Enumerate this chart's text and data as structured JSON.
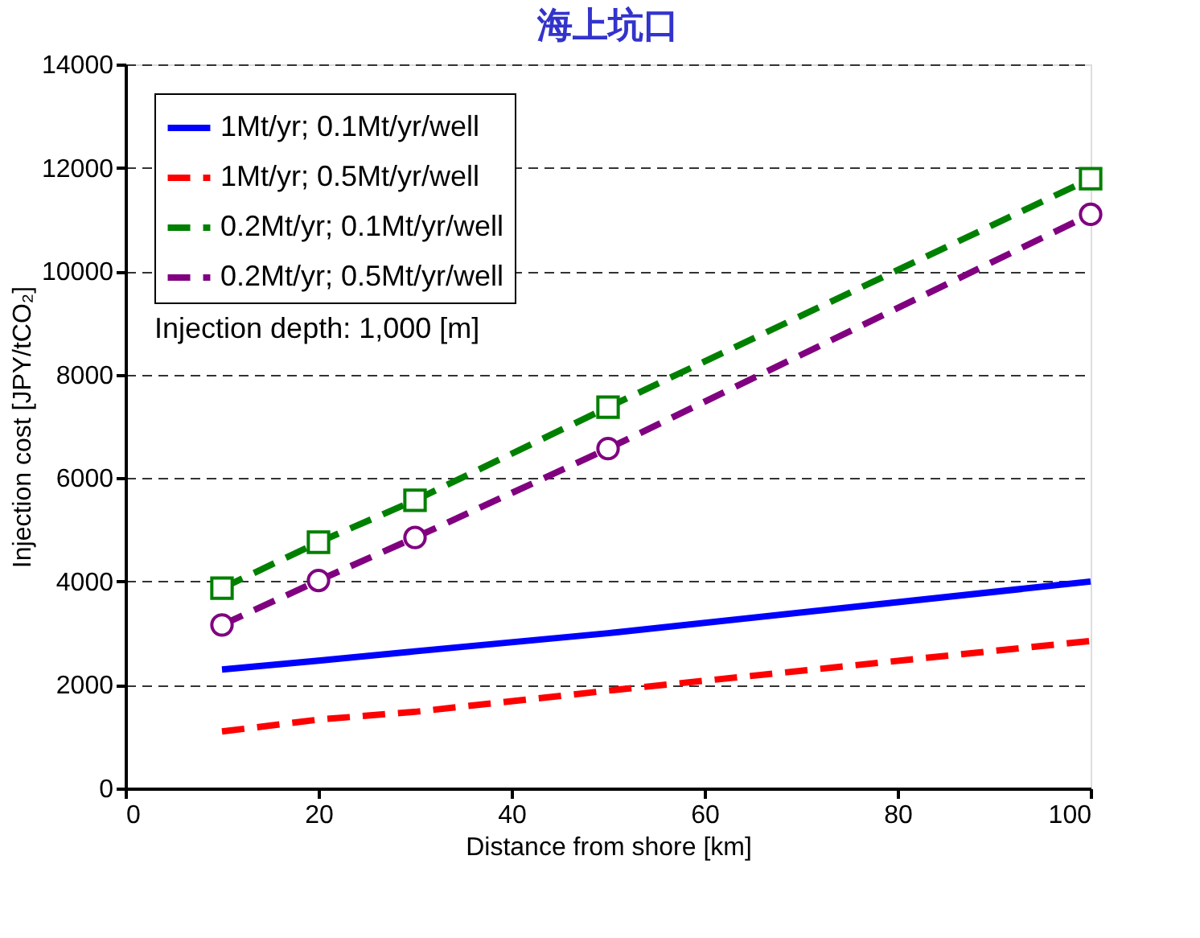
{
  "chart_data": {
    "type": "line",
    "title": "海上坑口",
    "xlabel": "Distance from shore [km]",
    "ylabel": "Injection cost [JPY/tCO₂]",
    "x": [
      10,
      20,
      30,
      50,
      100
    ],
    "series": [
      {
        "name": "1Mt/yr; 0.1Mt/yr/well",
        "color": "#0000ff",
        "values": [
          2300,
          2470,
          2650,
          3000,
          4000
        ],
        "marker": "none",
        "line_style": "solid"
      },
      {
        "name": "1Mt/yr; 0.5Mt/yr/well",
        "color": "#ff0000",
        "values": [
          1100,
          1330,
          1480,
          1890,
          2850
        ],
        "marker": "none",
        "line_style": "dashed"
      },
      {
        "name": "0.2Mt/yr; 0.1Mt/yr/well",
        "color": "#008000",
        "values": [
          3870,
          4760,
          5570,
          7370,
          11790
        ],
        "marker": "square",
        "line_style": "dashed"
      },
      {
        "name": "0.2Mt/yr; 0.5Mt/yr/well",
        "color": "#800080",
        "values": [
          3160,
          4020,
          4850,
          6570,
          11100
        ],
        "marker": "circle",
        "line_style": "dashed"
      }
    ],
    "annotations": [
      "Injection depth: 1,000 [m]"
    ],
    "xlim": [
      0,
      100
    ],
    "xticks": [
      0,
      20,
      40,
      60,
      80,
      100
    ],
    "ylim": [
      0,
      14000
    ],
    "yticks": [
      0,
      2000,
      4000,
      6000,
      8000,
      10000,
      12000,
      14000
    ],
    "grid": "y",
    "legend": "top left"
  }
}
